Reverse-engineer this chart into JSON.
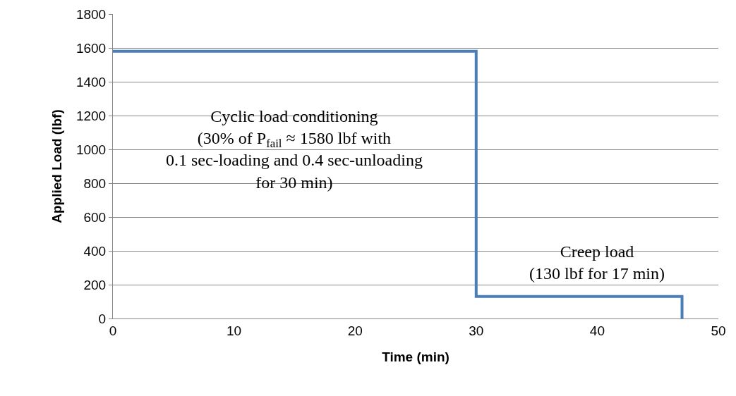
{
  "chart_data": {
    "type": "line",
    "xlabel": "Time (min)",
    "ylabel": "Applied Load (lbf)",
    "x": [
      0,
      30,
      30,
      47,
      47
    ],
    "series": [
      {
        "color": "#4a7ebb",
        "values": [
          1580,
          1580,
          130,
          130,
          0
        ]
      }
    ],
    "xlim": [
      0,
      50
    ],
    "xticks": [
      0,
      10,
      20,
      30,
      40,
      50
    ],
    "ylim": [
      0,
      1800
    ],
    "yticks": [
      0,
      200,
      400,
      600,
      800,
      1000,
      1200,
      1400,
      1600,
      1800
    ],
    "grid": "y",
    "marker": "none",
    "line_style": "solid",
    "annotations": [
      "Cyclic load conditioning\n(30% of P$_{fail}$ ≈ 1580 lbf with\n0.1 sec-loading and 0.4 sec-unloading\nfor 30 min)",
      "Creep load\n(130 lbf for 17 min)"
    ]
  }
}
